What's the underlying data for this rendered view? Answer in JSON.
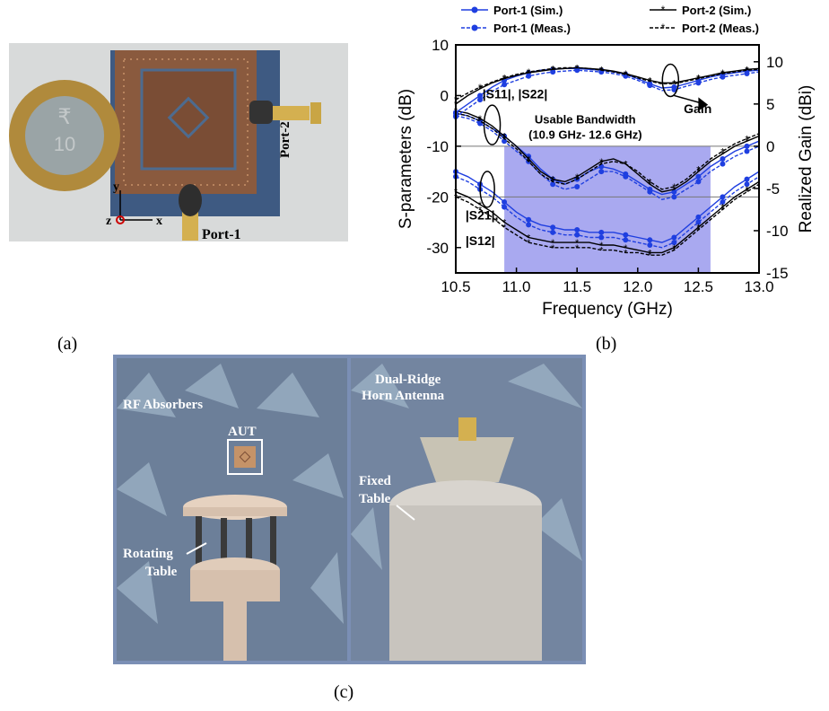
{
  "figure": {
    "caption_a": "(a)",
    "caption_b": "(b)",
    "caption_c": "(c)"
  },
  "photo_a": {
    "port2_label": "Port-2",
    "port1_label": "Port-1",
    "axis_y": "y",
    "axis_z": "z",
    "axis_x": "x",
    "coin_value": "10"
  },
  "photo_c": {
    "rf_absorbers_label": "RF Absorbers",
    "aut_label": "AUT",
    "rotating_table_label_1": "Rotating",
    "rotating_table_label_2": "Table",
    "horn_label_1": "Dual-Ridge",
    "horn_label_2": "Horn Antenna",
    "fixed_table_label_1": "Fixed",
    "fixed_table_label_2": "Table"
  },
  "colors": {
    "sim_port1": "#1f3fe0",
    "meas_port2": "#000000",
    "band_fill": "#a9a9f0"
  },
  "chart_data": {
    "type": "line",
    "xlabel": "Frequency (GHz)",
    "ylabel": "S-parameters (dB)",
    "y2label": "Realized Gain (dBi)",
    "xlim": [
      10.5,
      13.0
    ],
    "ylim": [
      -35,
      10
    ],
    "y2lim": [
      -15,
      12
    ],
    "x_ticks": [
      "10.5",
      "11.0",
      "11.5",
      "12.0",
      "12.5",
      "13.0"
    ],
    "y_ticks": [
      "10",
      "0",
      "-10",
      "-20",
      "-30"
    ],
    "y2_ticks": [
      "10",
      "5",
      "0",
      "-5",
      "-10",
      "-15"
    ],
    "legend_position": "top",
    "legend": [
      {
        "label": "Port-1 (Sim.)",
        "style": "solid-blue-dots"
      },
      {
        "label": "Port-2 (Sim.)",
        "style": "solid-black-stars"
      },
      {
        "label": "Port-1 (Meas.)",
        "style": "dashed-blue-dots"
      },
      {
        "label": "Port-2 (Meas.)",
        "style": "dashed-black-stars"
      }
    ],
    "annotations": {
      "band_label_1": "Usable Bandwidth",
      "band_label_2": "(10.9 GHz- 12.6 GHz)",
      "band_range": [
        10.9,
        12.6
      ],
      "refl_label": "|S11|, |S22|",
      "trans_label_1": "|S21|,",
      "trans_label_2": "|S12|",
      "gain_label": "Gain"
    },
    "reference_lines_y": [
      -10,
      -20
    ],
    "x": [
      10.5,
      10.6,
      10.7,
      10.8,
      10.9,
      11.0,
      11.1,
      11.2,
      11.3,
      11.4,
      11.5,
      11.6,
      11.7,
      11.8,
      11.9,
      12.0,
      12.1,
      12.2,
      12.3,
      12.4,
      12.5,
      12.6,
      12.7,
      12.8,
      12.9,
      13.0
    ],
    "series": [
      {
        "name": "Port-1 (Sim.)",
        "group": "s11",
        "axis": "left",
        "values": [
          -3.5,
          -4,
          -5,
          -6.5,
          -8,
          -10,
          -12,
          -14.5,
          -16.5,
          -17.5,
          -16.5,
          -15,
          -14,
          -14.5,
          -15.5,
          -17,
          -18.5,
          -19.5,
          -19,
          -17.5,
          -16,
          -14,
          -12.5,
          -11,
          -10,
          -9
        ]
      },
      {
        "name": "Port-1 (Meas.)",
        "group": "s11",
        "axis": "left",
        "values": [
          -4,
          -4.5,
          -5.5,
          -7,
          -9,
          -11,
          -13,
          -15.5,
          -17.5,
          -18.5,
          -18,
          -16.5,
          -15,
          -15,
          -16,
          -17.5,
          -19,
          -20.5,
          -20,
          -18.5,
          -17,
          -15,
          -13.5,
          -12,
          -11,
          -10
        ]
      },
      {
        "name": "Port-2 (Sim.)",
        "group": "s22",
        "axis": "left",
        "values": [
          -3,
          -3.5,
          -4.5,
          -6,
          -8,
          -10,
          -12.5,
          -15,
          -16.5,
          -17,
          -16,
          -14.5,
          -13,
          -12.5,
          -13.5,
          -15.5,
          -17.5,
          -19,
          -18.5,
          -17,
          -15,
          -13,
          -11.5,
          -10,
          -9,
          -8
        ]
      },
      {
        "name": "Port-2 (Meas.)",
        "group": "s22",
        "axis": "left",
        "values": [
          -3.5,
          -4,
          -5,
          -6.5,
          -8.5,
          -10.5,
          -13,
          -15.5,
          -17,
          -17.5,
          -16.5,
          -15,
          -13.5,
          -13,
          -13.5,
          -15,
          -17,
          -18.5,
          -18,
          -16.5,
          -14.5,
          -12.5,
          -11,
          -9.5,
          -8.5,
          -7.5
        ]
      },
      {
        "name": "S21 Port-1 (Sim.)",
        "group": "s21",
        "axis": "left",
        "values": [
          -15,
          -16,
          -17.5,
          -19,
          -21,
          -23,
          -24.5,
          -25.5,
          -26,
          -26.5,
          -26.5,
          -27,
          -27,
          -27,
          -27.5,
          -28,
          -28.5,
          -29,
          -28,
          -26,
          -24,
          -22,
          -20,
          -18,
          -16.5,
          -15
        ]
      },
      {
        "name": "S21 Port-1 (Meas.)",
        "group": "s21",
        "axis": "left",
        "values": [
          -16,
          -17,
          -18.5,
          -20,
          -22,
          -24,
          -25.5,
          -26.5,
          -27,
          -27.5,
          -27.5,
          -28,
          -28,
          -28,
          -28.5,
          -29,
          -29.5,
          -30,
          -29,
          -27,
          -25,
          -23,
          -21,
          -19,
          -17.5,
          -16
        ]
      },
      {
        "name": "S12 Port-2 (Sim.)",
        "group": "s12",
        "axis": "left",
        "values": [
          -19,
          -20,
          -21.5,
          -23,
          -25,
          -26.5,
          -28,
          -28.5,
          -29,
          -29,
          -29,
          -29,
          -29.5,
          -29.5,
          -30,
          -30.5,
          -31,
          -31,
          -30,
          -28,
          -26,
          -24,
          -22,
          -20,
          -18.5,
          -17
        ]
      },
      {
        "name": "S12 Port-2 (Meas.)",
        "group": "s12",
        "axis": "left",
        "values": [
          -20,
          -21,
          -22.5,
          -24,
          -26,
          -27.5,
          -29,
          -29.5,
          -30,
          -30,
          -30,
          -30,
          -30.5,
          -30.5,
          -31,
          -31,
          -31.5,
          -31.5,
          -30.5,
          -28.5,
          -26.5,
          -24.5,
          -22.5,
          -20.5,
          -19,
          -17.5
        ]
      },
      {
        "name": "Gain Port-1 (Sim.)",
        "group": "gain",
        "axis": "right",
        "values": [
          4,
          5,
          6,
          7,
          7.8,
          8.3,
          8.7,
          9,
          9.1,
          9.2,
          9.2,
          9.1,
          9,
          8.8,
          8.5,
          8,
          7.4,
          6.9,
          7,
          7.4,
          7.8,
          8.2,
          8.5,
          8.7,
          8.9,
          9
        ]
      },
      {
        "name": "Gain Port-1 (Meas.)",
        "group": "gain",
        "axis": "right",
        "values": [
          3.5,
          4.5,
          5.5,
          6.5,
          7.3,
          7.8,
          8.3,
          8.6,
          8.8,
          8.9,
          9,
          8.9,
          8.8,
          8.6,
          8.3,
          7.8,
          7.2,
          6.6,
          6.7,
          7.1,
          7.5,
          7.9,
          8.2,
          8.4,
          8.6,
          8.8
        ]
      },
      {
        "name": "Gain Port-2 (Sim.)",
        "group": "gain",
        "axis": "right",
        "values": [
          5,
          6,
          6.8,
          7.5,
          8,
          8.4,
          8.7,
          8.9,
          9.1,
          9.2,
          9.3,
          9.2,
          9.1,
          8.9,
          8.6,
          8.2,
          7.8,
          7.5,
          7.5,
          7.8,
          8.1,
          8.4,
          8.7,
          8.9,
          9.1,
          9.2
        ]
      },
      {
        "name": "Gain Port-2 (Meas.)",
        "group": "gain",
        "axis": "right",
        "values": [
          5.5,
          6.3,
          7,
          7.6,
          8.1,
          8.5,
          8.8,
          9,
          9.2,
          9.3,
          9.3,
          9.2,
          9,
          8.8,
          8.5,
          8.1,
          7.7,
          7.4,
          7.4,
          7.7,
          8,
          8.3,
          8.6,
          8.8,
          9,
          9.1
        ]
      }
    ]
  }
}
